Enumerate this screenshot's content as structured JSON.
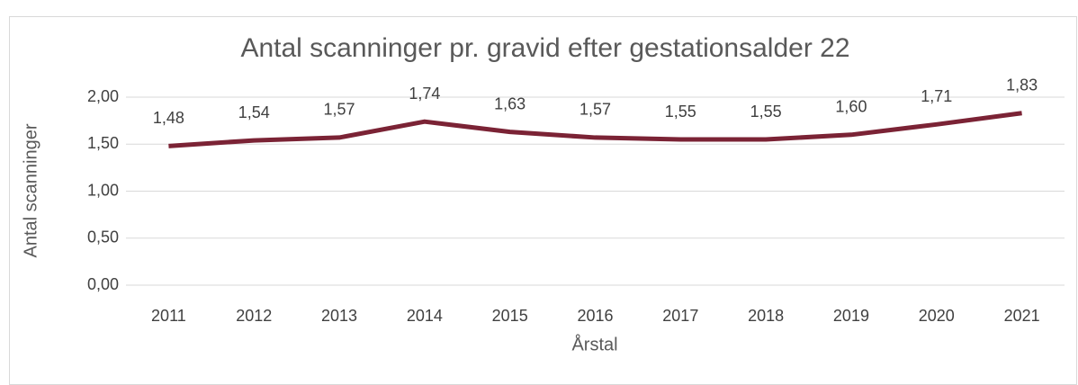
{
  "chart_data": {
    "type": "line",
    "title": "Antal scanninger pr. gravid efter gestationsalder 22",
    "x_label": "Årstal",
    "y_label": "Antal scanninger",
    "categories": [
      "2011",
      "2012",
      "2013",
      "2014",
      "2015",
      "2016",
      "2017",
      "2018",
      "2019",
      "2020",
      "2021"
    ],
    "series": [
      {
        "name": "Antal scanninger",
        "color": "#7b2335",
        "values": [
          1.48,
          1.54,
          1.57,
          1.74,
          1.63,
          1.57,
          1.55,
          1.55,
          1.6,
          1.71,
          1.83
        ],
        "value_labels": [
          "1,48",
          "1,54",
          "1,57",
          "1,74",
          "1,63",
          "1,57",
          "1,55",
          "1,55",
          "1,60",
          "1,71",
          "1,83"
        ]
      }
    ],
    "ylim": [
      0,
      2
    ],
    "yticks": [
      {
        "value": 0,
        "label": "0,00"
      },
      {
        "value": 0.5,
        "label": "0,50"
      },
      {
        "value": 1,
        "label": "1,00"
      },
      {
        "value": 1.5,
        "label": "1,50"
      },
      {
        "value": 2,
        "label": "2,00"
      }
    ],
    "grid": true
  }
}
